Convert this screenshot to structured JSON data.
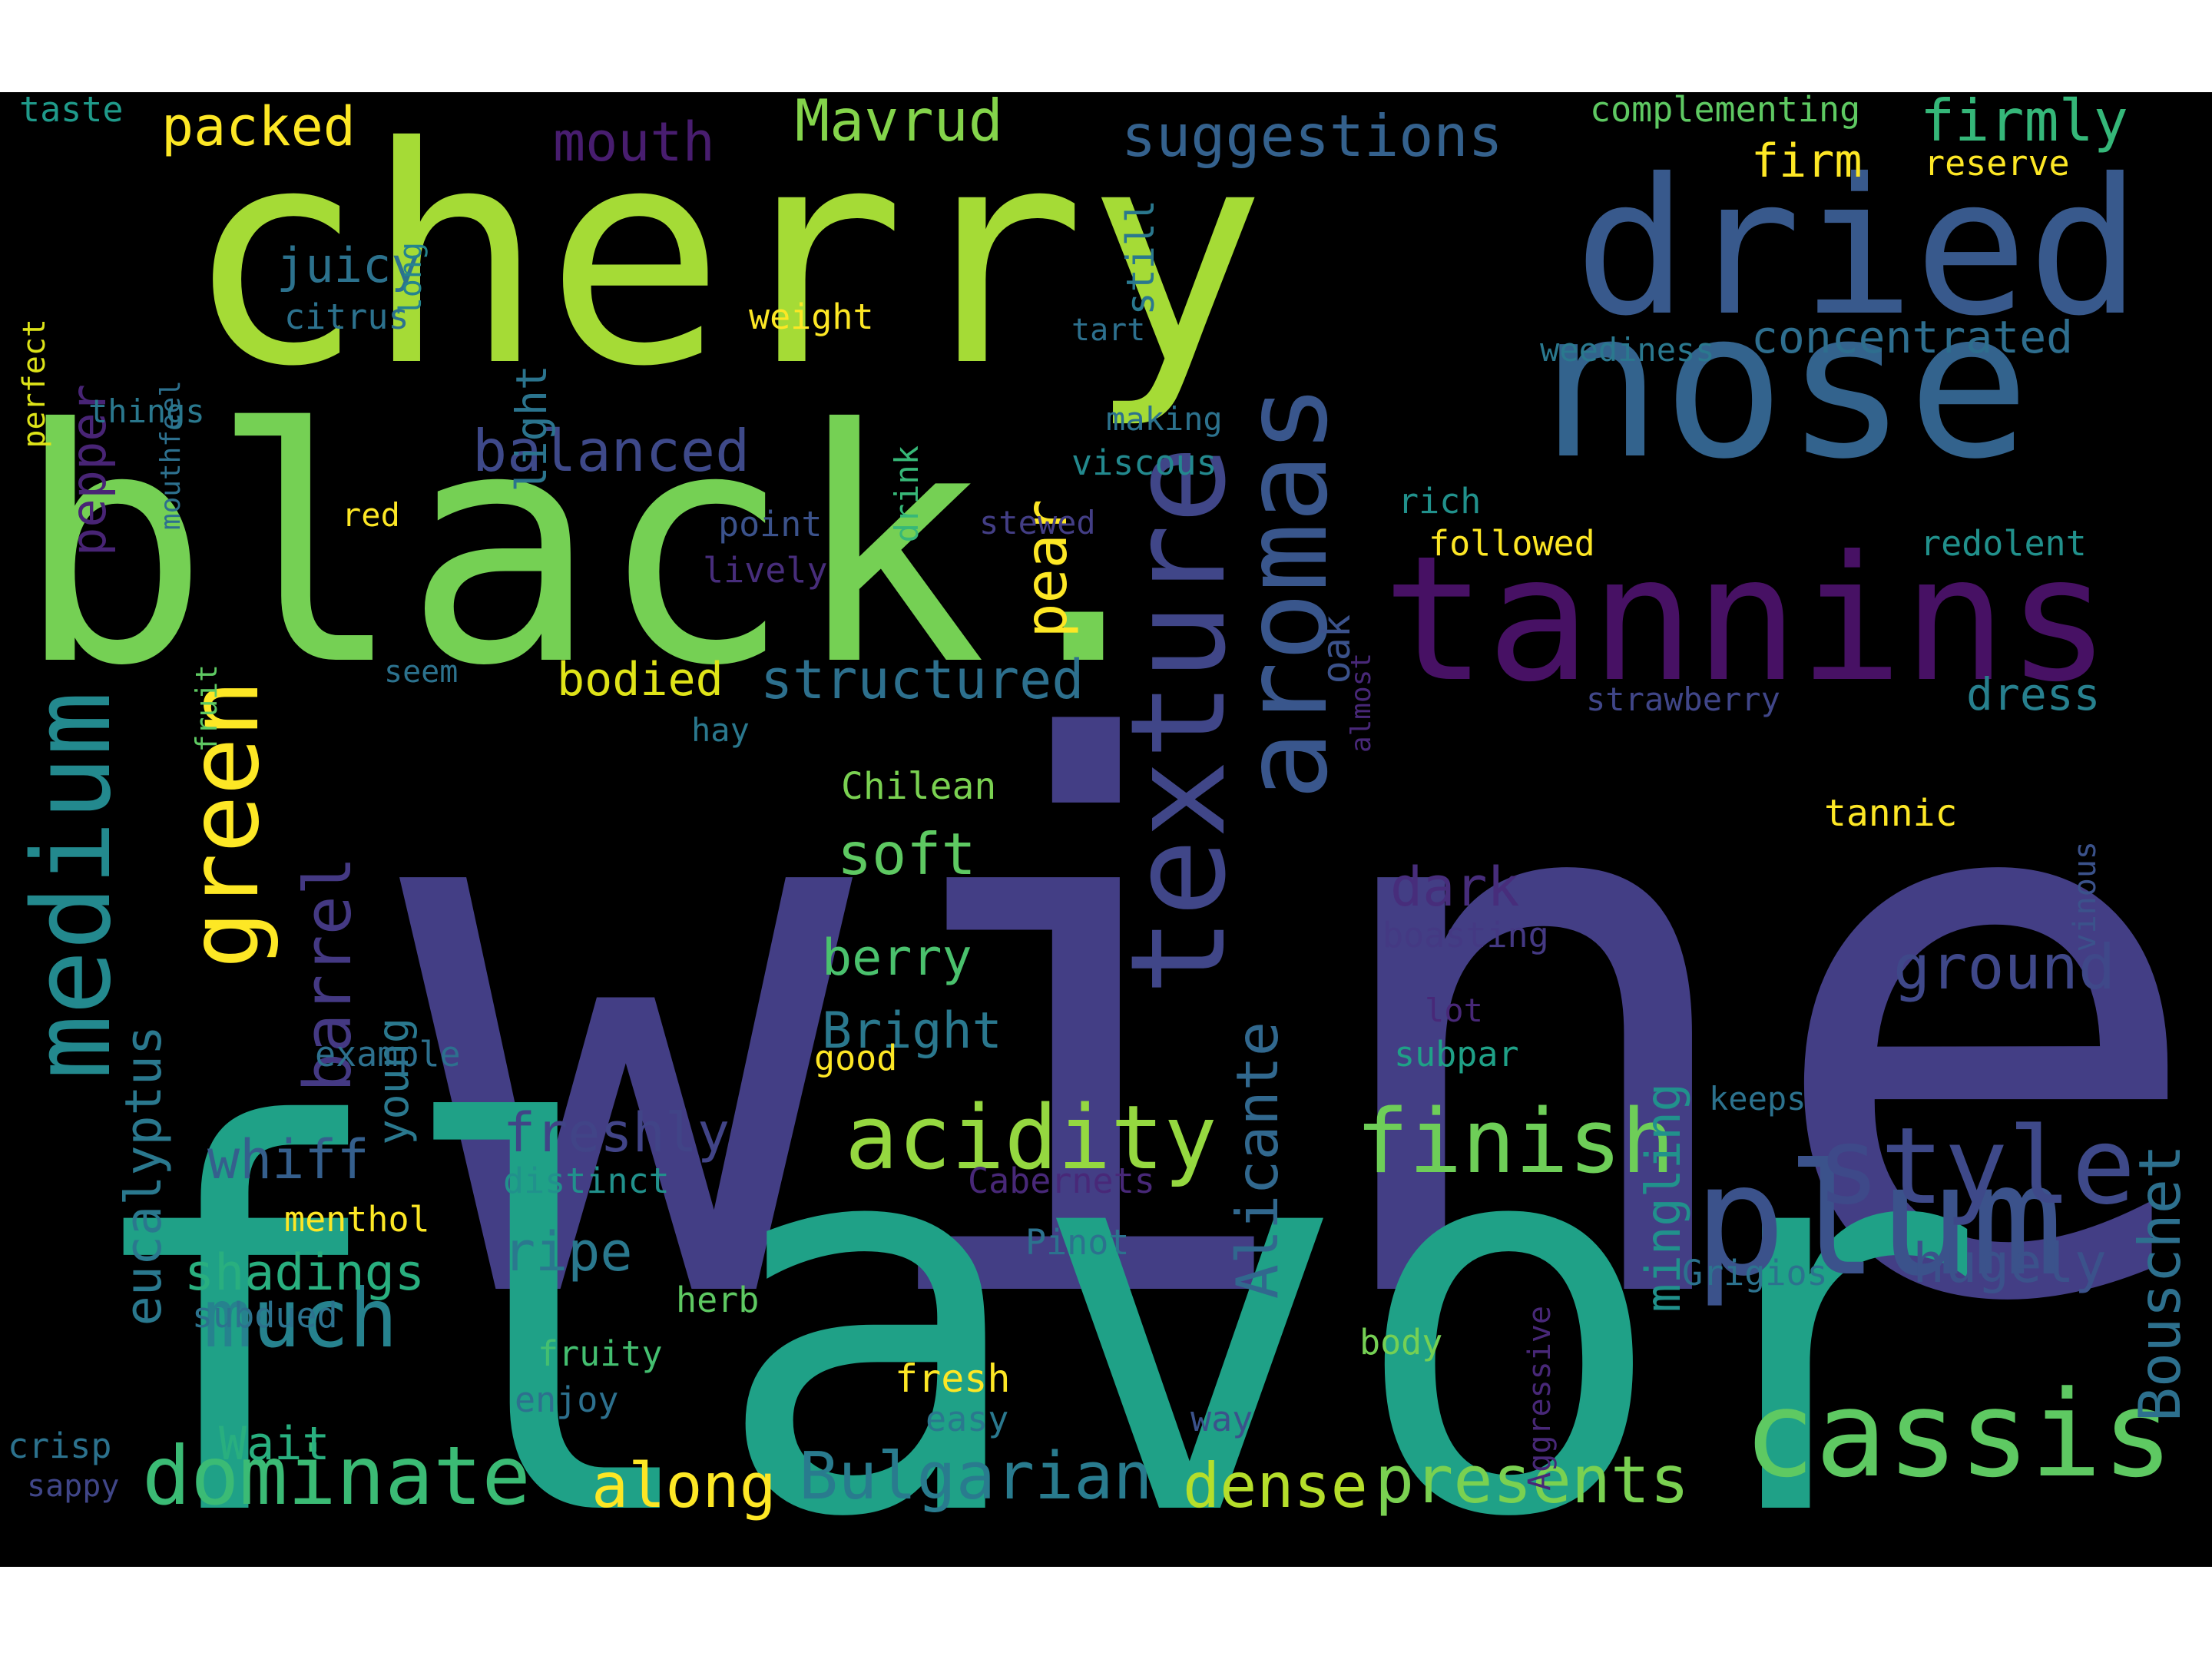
{
  "background_color": "#000000",
  "words": [
    {
      "key": "wine",
      "text": "wine",
      "color": "#433e85"
    },
    {
      "key": "flavor",
      "text": "flavor",
      "color": "#1fa187"
    },
    {
      "key": "cherry",
      "text": "cherry",
      "color": "#a5db36"
    },
    {
      "key": "black",
      "text": "black.",
      "color": "#75d054"
    },
    {
      "key": "nose",
      "text": "nose",
      "color": "#33638d"
    },
    {
      "key": "dried",
      "text": "dried",
      "color": "#38598c"
    },
    {
      "key": "tannins",
      "text": "tannins",
      "color": "#471164"
    },
    {
      "key": "plum",
      "text": "plum",
      "color": "#3b528b"
    },
    {
      "key": "cassis",
      "text": "cassis",
      "color": "#5ec962"
    },
    {
      "key": "style",
      "text": "style",
      "color": "#3e4989"
    },
    {
      "key": "texture",
      "text": "texture",
      "color": "#404688"
    },
    {
      "key": "aromas",
      "text": "aromas",
      "color": "#39568c"
    },
    {
      "key": "medium",
      "text": "medium",
      "color": "#23898e"
    },
    {
      "key": "green",
      "text": "green",
      "color": "#fde725"
    },
    {
      "key": "acidity",
      "text": "acidity",
      "color": "#95d840"
    },
    {
      "key": "finish",
      "text": "finish",
      "color": "#6ece58"
    },
    {
      "key": "dominate",
      "text": "dominate",
      "color": "#3bbb75"
    },
    {
      "key": "much",
      "text": "much",
      "color": "#26828e"
    },
    {
      "key": "Bulgarian",
      "text": "Bulgarian",
      "color": "#297b8e"
    },
    {
      "key": "presents",
      "text": "presents",
      "color": "#7ad151"
    },
    {
      "key": "dense",
      "text": "dense",
      "color": "#b5de2b"
    },
    {
      "key": "along",
      "text": "along",
      "color": "#fde725"
    },
    {
      "key": "Alicante",
      "text": "Alicante",
      "color": "#31688e"
    },
    {
      "key": "Bouschet",
      "text": "Bouschet",
      "color": "#2d708e"
    },
    {
      "key": "pear",
      "text": "pear",
      "color": "#fde725"
    },
    {
      "key": "barrel",
      "text": "barrel",
      "color": "#443983"
    },
    {
      "key": "eucalyptus",
      "text": "eucalyptus",
      "color": "#2a788e"
    },
    {
      "key": "pepper",
      "text": "pepper",
      "color": "#482475"
    },
    {
      "key": "mingling",
      "text": "mingling",
      "color": "#21918c"
    },
    {
      "key": "ground",
      "text": "ground",
      "color": "#3f4889"
    },
    {
      "key": "structured",
      "text": "structured",
      "color": "#2d708e"
    },
    {
      "key": "freshly",
      "text": "freshly",
      "color": "#414487"
    },
    {
      "key": "whiff",
      "text": "whiff",
      "color": "#355f8d"
    },
    {
      "key": "ripe",
      "text": "ripe",
      "color": "#2a788e"
    },
    {
      "key": "shadings",
      "text": "shadings",
      "color": "#29af7f"
    },
    {
      "key": "hugely",
      "text": "hugely",
      "color": "#3b528b"
    },
    {
      "key": "dark",
      "text": "dark",
      "color": "#472d7b"
    },
    {
      "key": "soft",
      "text": "soft",
      "color": "#5ec962"
    },
    {
      "key": "berry",
      "text": "berry",
      "color": "#4ac16d"
    },
    {
      "key": "Bright",
      "text": "Bright",
      "color": "#2a788e"
    },
    {
      "key": "balanced",
      "text": "balanced",
      "color": "#3e4989"
    },
    {
      "key": "bodied",
      "text": "bodied",
      "color": "#dfe318"
    },
    {
      "key": "Mavrud",
      "text": "Mavrud",
      "color": "#84d44b"
    },
    {
      "key": "suggestions",
      "text": "suggestions",
      "color": "#34618d"
    },
    {
      "key": "firmly",
      "text": "firmly",
      "color": "#35b779"
    },
    {
      "key": "mouth",
      "text": "mouth",
      "color": "#481d6f"
    },
    {
      "key": "packed",
      "text": "packed",
      "color": "#fde725"
    },
    {
      "key": "juicy",
      "text": "juicy",
      "color": "#2c728e"
    },
    {
      "key": "concentrated",
      "text": "concentrated",
      "color": "#2e6e8e"
    },
    {
      "key": "firm",
      "text": "firm",
      "color": "#fde725"
    },
    {
      "key": "Wait",
      "text": "Wait",
      "color": "#29af7f"
    },
    {
      "key": "dress",
      "text": "dress",
      "color": "#27808e"
    },
    {
      "key": "young",
      "text": "young",
      "color": "#2a788e"
    },
    {
      "key": "light",
      "text": "light",
      "color": "#2b748e"
    },
    {
      "key": "still",
      "text": "still",
      "color": "#2a788e"
    },
    {
      "key": "oak",
      "text": "oak",
      "color": "#3b528b"
    },
    {
      "key": "fresh",
      "text": "fresh",
      "color": "#fde725"
    },
    {
      "key": "taste",
      "text": "taste",
      "color": "#1f9a8a"
    },
    {
      "key": "long",
      "text": "long",
      "color": "#25848e"
    },
    {
      "key": "perfect",
      "text": "perfect",
      "color": "#dde318"
    },
    {
      "key": "mouthfeel",
      "text": "mouthfeel",
      "color": "#2d708e"
    },
    {
      "key": "citrus",
      "text": "citrus",
      "color": "#2c728e"
    },
    {
      "key": "weight",
      "text": "weight",
      "color": "#fde725"
    },
    {
      "key": "tart",
      "text": "tart",
      "color": "#2d708e"
    },
    {
      "key": "things",
      "text": "things",
      "color": "#2a788e"
    },
    {
      "key": "drink",
      "text": "drink",
      "color": "#37b878"
    },
    {
      "key": "making",
      "text": "making",
      "color": "#2c728e"
    },
    {
      "key": "viscous",
      "text": "viscous",
      "color": "#23898e"
    },
    {
      "key": "complementing",
      "text": "complementing",
      "color": "#5ec962"
    },
    {
      "key": "reserve",
      "text": "reserve",
      "color": "#fde725"
    },
    {
      "key": "weediness",
      "text": "weediness",
      "color": "#2a788e"
    },
    {
      "key": "red",
      "text": "red",
      "color": "#fde725"
    },
    {
      "key": "point",
      "text": "point",
      "color": "#3b528b"
    },
    {
      "key": "lively",
      "text": "lively",
      "color": "#472d7b"
    },
    {
      "key": "stewed",
      "text": "stewed",
      "color": "#433e85"
    },
    {
      "key": "rich",
      "text": "rich",
      "color": "#21918c"
    },
    {
      "key": "followed",
      "text": "followed",
      "color": "#fde725"
    },
    {
      "key": "redolent",
      "text": "redolent",
      "color": "#21918c"
    },
    {
      "key": "almost",
      "text": "almost",
      "color": "#482878"
    },
    {
      "key": "fruit",
      "text": "fruit",
      "color": "#5ec962"
    },
    {
      "key": "seem",
      "text": "seem",
      "color": "#2c728e"
    },
    {
      "key": "strawberry",
      "text": "strawberry",
      "color": "#404688"
    },
    {
      "key": "hay",
      "text": "hay",
      "color": "#2a788e"
    },
    {
      "key": "Chilean",
      "text": "Chilean",
      "color": "#7ad151"
    },
    {
      "key": "tannic",
      "text": "tannic",
      "color": "#fde725"
    },
    {
      "key": "vinous",
      "text": "vinous",
      "color": "#3b528b"
    },
    {
      "key": "boasting",
      "text": "boasting",
      "color": "#443983"
    },
    {
      "key": "lot",
      "text": "lot",
      "color": "#482878"
    },
    {
      "key": "example",
      "text": "example",
      "color": "#2d708e"
    },
    {
      "key": "good",
      "text": "good",
      "color": "#fde725"
    },
    {
      "key": "subpar",
      "text": "subpar",
      "color": "#1fa187"
    },
    {
      "key": "keeps",
      "text": "keeps",
      "color": "#2c728e"
    },
    {
      "key": "distinct",
      "text": "distinct",
      "color": "#21918c"
    },
    {
      "key": "Cabernets",
      "text": "Cabernets",
      "color": "#482878"
    },
    {
      "key": "menthol",
      "text": "menthol",
      "color": "#fde725"
    },
    {
      "key": "Pinot",
      "text": "Pinot",
      "color": "#2c728e"
    },
    {
      "key": "Grigios",
      "text": "Grigios",
      "color": "#2c728e"
    },
    {
      "key": "subdued",
      "text": "subdued",
      "color": "#2c728e"
    },
    {
      "key": "herb",
      "text": "herb",
      "color": "#5ec962"
    },
    {
      "key": "fruity",
      "text": "fruity",
      "color": "#44bf70"
    },
    {
      "key": "Aggressive",
      "text": "Aggressive",
      "color": "#482878"
    },
    {
      "key": "body",
      "text": "body",
      "color": "#75d054"
    },
    {
      "key": "enjoy",
      "text": "enjoy",
      "color": "#2d708e"
    },
    {
      "key": "crisp",
      "text": "crisp",
      "color": "#2c728e"
    },
    {
      "key": "easy",
      "text": "easy",
      "color": "#2a788e"
    },
    {
      "key": "way",
      "text": "way",
      "color": "#3b528b"
    },
    {
      "key": "sappy",
      "text": "sappy",
      "color": "#404688"
    }
  ]
}
